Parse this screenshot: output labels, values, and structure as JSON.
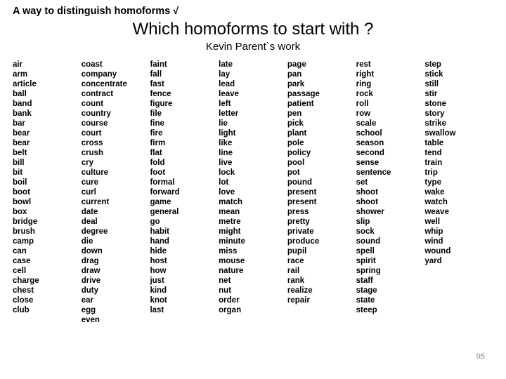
{
  "header": "A way to distinguish homoforms   √",
  "title": "Which homoforms to start with ?",
  "subtitle": "Kevin Parent`s work",
  "page_number": "95",
  "columns": [
    [
      "air",
      "arm",
      "article",
      "ball",
      "band",
      "bank",
      "bar",
      "bear",
      "bear",
      "belt",
      "bill",
      "bit",
      "boil",
      "boot",
      "bowl",
      "box",
      "bridge",
      "brush",
      "camp",
      "can",
      "case",
      "cell",
      "charge",
      "chest",
      "close",
      "club"
    ],
    [
      "coast",
      "company",
      "concentrate",
      "contract",
      "count",
      "country",
      "course",
      "court",
      "cross",
      "crush",
      "cry",
      "culture",
      "cure",
      "curl",
      "current",
      "date",
      "deal",
      "degree",
      "die",
      "down",
      "drag",
      "draw",
      "drive",
      "duty",
      "ear",
      "egg",
      "even"
    ],
    [
      "faint",
      "fall",
      "fast",
      "fence",
      "figure",
      "file",
      "fine",
      "fire",
      "firm",
      "flat",
      "fold",
      "foot",
      "formal",
      "forward",
      "game",
      "general",
      "go",
      "habit",
      "hand",
      "hide",
      "host",
      "how",
      "just",
      "kind",
      "knot",
      "last"
    ],
    [
      "late",
      "lay",
      "lead",
      "leave",
      "left",
      "letter",
      "lie",
      "light",
      "like",
      "line",
      "live",
      "lock",
      "lot",
      "love",
      "match",
      "mean",
      "metre",
      "might",
      "minute",
      "miss",
      "mouse",
      "nature",
      "net",
      "nut",
      "order",
      "organ"
    ],
    [
      "page",
      "pan",
      "park",
      "passage",
      "patient",
      "pen",
      "pick",
      "plant",
      "pole",
      "policy",
      "pool",
      "pot",
      "pound",
      "present",
      "present",
      "press",
      "pretty",
      "private",
      "produce",
      "pupil",
      "race",
      "rail",
      "rank",
      "realize",
      "repair"
    ],
    [
      "rest",
      "right",
      "ring",
      "rock",
      "roll",
      "row",
      "scale",
      "school",
      "season",
      "second",
      "sense",
      "sentence",
      "set",
      "shoot",
      "shoot",
      "shower",
      "slip",
      "sock",
      "sound",
      "spell",
      "spirit",
      "spring",
      "staff",
      "stage",
      "state",
      "steep"
    ],
    [
      "step",
      "stick",
      "still",
      "stir",
      "stone",
      "story",
      "strike",
      "swallow",
      "table",
      "tend",
      "train",
      "trip",
      "type",
      "wake",
      "watch",
      "weave",
      "well",
      "whip",
      "wind",
      "wound",
      "yard"
    ]
  ],
  "style": {
    "background_color": "#ffffff",
    "header_fontsize": 14.5,
    "title_fontsize": 24,
    "subtitle_fontsize": 15,
    "word_fontsize": 11.5,
    "word_fontweight": "bold",
    "pagenum_color": "#8a8a8a",
    "text_color": "#000000",
    "aspect": "720x540"
  }
}
